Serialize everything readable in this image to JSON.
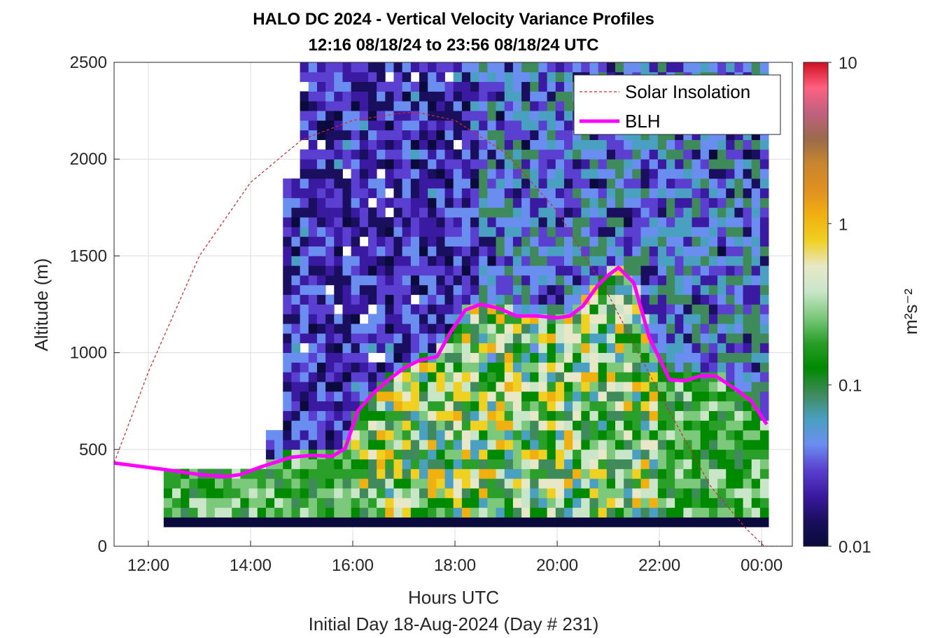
{
  "chart_data": {
    "type": "heatmap",
    "title": "HALO DC 2024 - Vertical Velocity Variance Profiles",
    "subtitle": "12:16 08/18/24 to 23:56 08/18/24  UTC",
    "xlabel": "Hours UTC",
    "xlabel2": "Initial Day 18-Aug-2024 (Day # 231)",
    "ylabel": "Altitude (m)",
    "xlim": [
      11.33,
      24.6
    ],
    "ylim": [
      0,
      2500
    ],
    "x_ticks": [
      12,
      14,
      16,
      18,
      20,
      22,
      24
    ],
    "x_tick_labels": [
      "12:00",
      "14:00",
      "16:00",
      "18:00",
      "20:00",
      "22:00",
      "00:00"
    ],
    "y_ticks": [
      0,
      500,
      1000,
      1500,
      2000,
      2500
    ],
    "y_tick_labels": [
      "0",
      "500",
      "1000",
      "1500",
      "2000",
      "2500"
    ],
    "grid": true,
    "legend_position": "top-right",
    "colorbar": {
      "label": "m²s⁻²",
      "scale": "log",
      "range": [
        0.01,
        10
      ],
      "ticks": [
        0.01,
        0.1,
        1,
        10
      ],
      "tick_labels": [
        "0.01",
        "0.1",
        "1",
        "10"
      ]
    },
    "series": [
      {
        "name": "Solar Insolation",
        "style": "dashed",
        "color": "#d62728",
        "x": [
          11.33,
          12.0,
          13.0,
          14.0,
          15.0,
          16.0,
          17.0,
          17.3,
          18.0,
          19.0,
          20.0,
          21.0,
          22.0,
          23.0,
          23.7,
          24.05,
          24.6
        ],
        "y": [
          430,
          900,
          1500,
          1880,
          2100,
          2200,
          2240,
          2240,
          2200,
          2030,
          1730,
          1300,
          790,
          310,
          90,
          0,
          0
        ]
      },
      {
        "name": "BLH",
        "style": "solid",
        "color": "#ff00ff",
        "x": [
          11.33,
          12.5,
          13.0,
          13.5,
          13.8,
          14.2,
          14.8,
          15.2,
          15.6,
          15.85,
          16.1,
          16.4,
          16.7,
          17.0,
          17.3,
          17.65,
          17.9,
          18.2,
          18.5,
          18.85,
          19.2,
          19.6,
          20.0,
          20.25,
          20.5,
          20.8,
          21.0,
          21.2,
          21.5,
          21.8,
          22.2,
          22.5,
          22.8,
          23.1,
          23.5,
          23.8,
          24.1
        ],
        "y": [
          430,
          390,
          370,
          360,
          370,
          410,
          460,
          470,
          465,
          505,
          700,
          790,
          860,
          920,
          960,
          980,
          1100,
          1220,
          1250,
          1230,
          1190,
          1190,
          1180,
          1190,
          1240,
          1350,
          1400,
          1440,
          1360,
          1080,
          860,
          855,
          880,
          880,
          810,
          750,
          630
        ]
      }
    ],
    "heatmap": {
      "x_start": 12.3,
      "x_end": 24.0,
      "time_step_hours": 0.1667,
      "altitude_bins_m": [
        100,
        150,
        200,
        250,
        300,
        350,
        400,
        450,
        500,
        550,
        600,
        650,
        700,
        750,
        800,
        850,
        900,
        950,
        1000,
        1050,
        1100,
        1150,
        1200,
        1250,
        1300,
        1350,
        1400,
        1450,
        1500,
        1550,
        1600,
        1650,
        1700,
        1750,
        1800,
        1850,
        1900,
        1950,
        2000,
        2050,
        2100,
        2150,
        2200,
        2250,
        2300,
        2350,
        2400,
        2450
      ],
      "value_units": "m^2 s^-2",
      "colormap": [
        "#0a0a3c",
        "#1a0f5e",
        "#3a1aa0",
        "#5a3fd0",
        "#6a8ef0",
        "#4aa0c0",
        "#3f8a5a",
        "#008a00",
        "#2a9f2a",
        "#7cc97c",
        "#c9e6c9",
        "#e8e8c8",
        "#f0d020",
        "#f0b010",
        "#e09020",
        "#c8862d",
        "#9a6a4a",
        "#c06080",
        "#ff6080",
        "#d01020"
      ],
      "lowest_layer_value": 0.01,
      "mixed_layer_value_range": [
        0.05,
        1.2
      ],
      "upper_layer_value_range": [
        0.01,
        0.08
      ]
    }
  }
}
